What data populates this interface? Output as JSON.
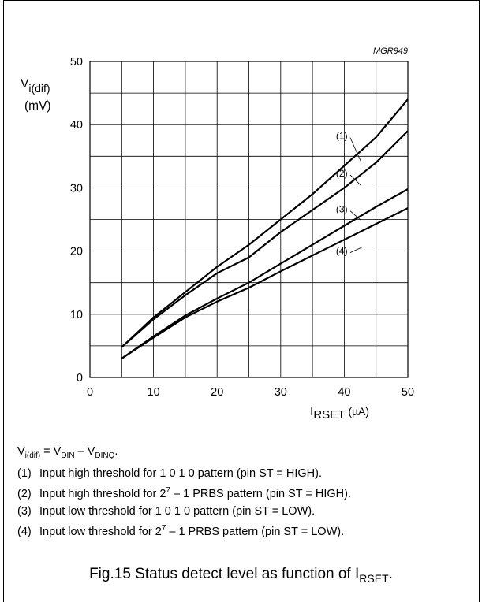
{
  "figure_code": "MGR949",
  "chart_data": {
    "type": "line",
    "ylabel": "V",
    "ylabel_sub": "i(dif)",
    "ylabel_unit": "(mV)",
    "xlabel": "I",
    "xlabel_sub": "RSET",
    "xlabel_unit": "(µA)",
    "xlim": [
      0,
      50
    ],
    "ylim": [
      0,
      50
    ],
    "xticks": [
      "0",
      "10",
      "20",
      "30",
      "40",
      "50"
    ],
    "yticks": [
      "0",
      "10",
      "20",
      "30",
      "40",
      "50"
    ],
    "grid": true,
    "series": [
      {
        "name": "(1)",
        "x": [
          5,
          10,
          15,
          20,
          25,
          30,
          35,
          40,
          45,
          50
        ],
        "y": [
          4.8,
          9.5,
          13.5,
          17.5,
          21,
          25,
          29,
          33.5,
          38,
          44
        ]
      },
      {
        "name": "(2)",
        "x": [
          5,
          10,
          15,
          20,
          25,
          30,
          35,
          40,
          45,
          50
        ],
        "y": [
          4.8,
          9.2,
          13,
          16.5,
          19,
          23,
          26.5,
          30,
          34,
          39
        ]
      },
      {
        "name": "(3)",
        "x": [
          5,
          10,
          15,
          20,
          25,
          30,
          35,
          40,
          45,
          50
        ],
        "y": [
          3,
          6.5,
          9.8,
          12.5,
          15,
          18,
          21,
          24,
          27,
          29.8
        ]
      },
      {
        "name": "(4)",
        "x": [
          5,
          10,
          15,
          20,
          25,
          30,
          35,
          40,
          45,
          50
        ],
        "y": [
          3,
          6.3,
          9.5,
          12,
          14.2,
          16.8,
          19.3,
          21.8,
          24.3,
          26.8
        ]
      }
    ]
  },
  "definition": {
    "lhs": "V",
    "lhs_sub": "i(dif)",
    "eq": " = V",
    "t1_sub": "DIN",
    "minus": " – V",
    "t2_sub": "DINQ",
    "end": "."
  },
  "notes": [
    {
      "num": "(1)",
      "text": "Input high threshold for 1 0 1 0 pattern (pin ST = HIGH)."
    },
    {
      "num": "(2)",
      "pre": "Input high threshold for 2",
      "sup": "7",
      "post": " – 1 PRBS pattern (pin ST = HIGH)."
    },
    {
      "num": "(3)",
      "text": "Input low threshold for 1 0 1 0 pattern (pin ST = LOW)."
    },
    {
      "num": "(4)",
      "pre": "Input low threshold for 2",
      "sup": "7",
      "post": " – 1 PRBS pattern (pin ST = LOW)."
    }
  ],
  "caption": {
    "prefix": "Fig.15  Status detect level as function of I",
    "sub": "RSET",
    "suffix": "."
  }
}
